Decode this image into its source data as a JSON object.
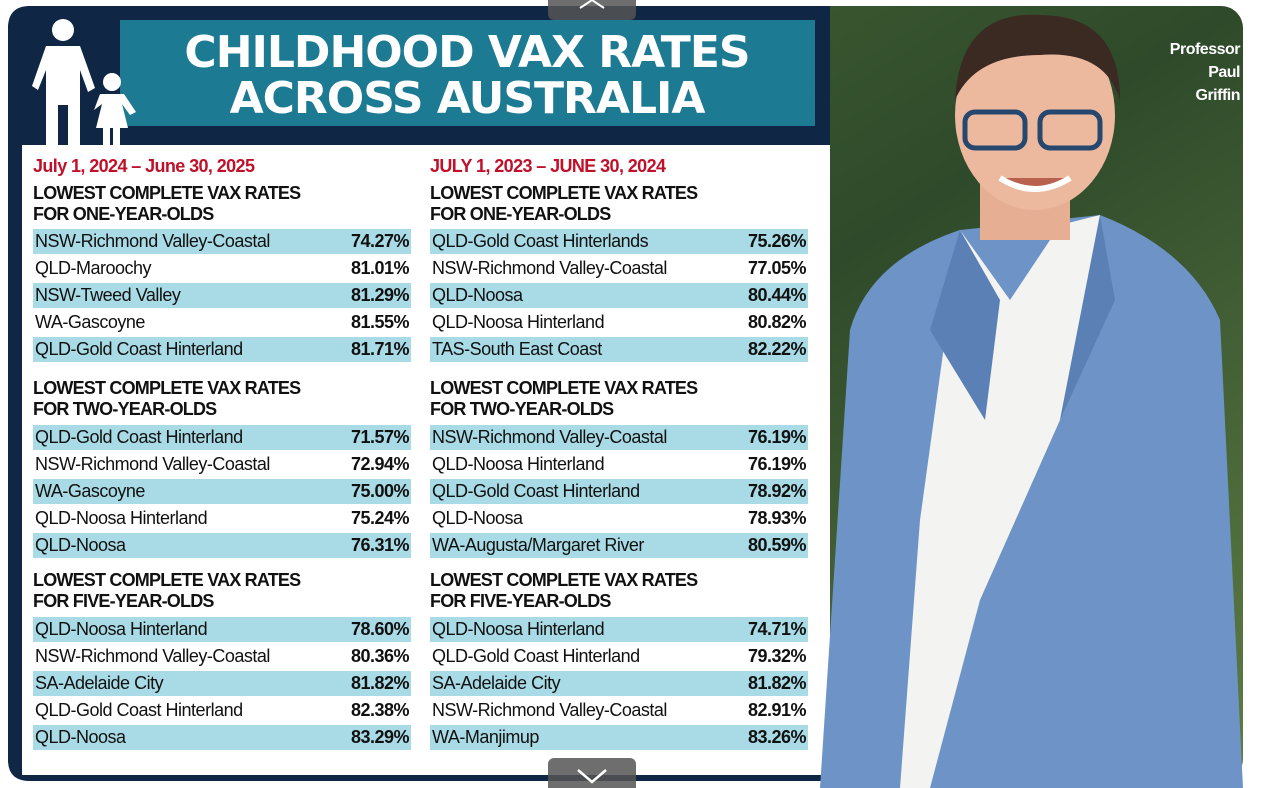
{
  "header": {
    "title_lines": [
      "CHILDHOOD VAX RATES",
      "ACROSS AUSTRALIA"
    ]
  },
  "photo_caption": [
    "Professor",
    "Paul",
    "Griffin"
  ],
  "columns": [
    {
      "period": "July 1, 2024 – June 30, 2025",
      "sections": [
        {
          "heading": [
            "LOWEST COMPLETE VAX RATES",
            "FOR ONE-YEAR-OLDS"
          ],
          "rows": [
            [
              "NSW-Richmond Valley-Coastal",
              "74.27%"
            ],
            [
              "QLD-Maroochy",
              "81.01%"
            ],
            [
              "NSW-Tweed Valley",
              "81.29%"
            ],
            [
              "WA-Gascoyne",
              "81.55%"
            ],
            [
              "QLD-Gold Coast Hinterland",
              "81.71%"
            ]
          ]
        },
        {
          "heading": [
            "LOWEST COMPLETE VAX RATES",
            "FOR TWO-YEAR-OLDS"
          ],
          "rows": [
            [
              "QLD-Gold Coast Hinterland",
              "71.57%"
            ],
            [
              "NSW-Richmond Valley-Coastal",
              "72.94%"
            ],
            [
              "WA-Gascoyne",
              "75.00%"
            ],
            [
              "QLD-Noosa Hinterland",
              "75.24%"
            ],
            [
              "QLD-Noosa",
              "76.31%"
            ]
          ]
        },
        {
          "heading": [
            "LOWEST COMPLETE VAX RATES",
            "FOR FIVE-YEAR-OLDS"
          ],
          "rows": [
            [
              "QLD-Noosa Hinterland",
              "78.60%"
            ],
            [
              "NSW-Richmond Valley-Coastal",
              "80.36%"
            ],
            [
              "SA-Adelaide City",
              "81.82%"
            ],
            [
              "QLD-Gold Coast Hinterland",
              "82.38%"
            ],
            [
              "QLD-Noosa",
              "83.29%"
            ]
          ]
        }
      ]
    },
    {
      "period": "JULY 1, 2023 – JUNE 30, 2024",
      "sections": [
        {
          "heading": [
            "LOWEST COMPLETE VAX RATES",
            "FOR ONE-YEAR-OLDS"
          ],
          "rows": [
            [
              "QLD-Gold Coast Hinterlands",
              "75.26%"
            ],
            [
              "NSW-Richmond Valley-Coastal",
              "77.05%"
            ],
            [
              "QLD-Noosa",
              "80.44%"
            ],
            [
              "QLD-Noosa Hinterland",
              "80.82%"
            ],
            [
              "TAS-South East Coast",
              "82.22%"
            ]
          ]
        },
        {
          "heading": [
            "LOWEST COMPLETE VAX RATES",
            "FOR TWO-YEAR-OLDS"
          ],
          "rows": [
            [
              "NSW-Richmond Valley-Coastal",
              "76.19%"
            ],
            [
              "QLD-Noosa Hinterland",
              "76.19%"
            ],
            [
              "QLD-Gold Coast Hinterland",
              "78.92%"
            ],
            [
              "QLD-Noosa",
              "78.93%"
            ],
            [
              "WA-Augusta/Margaret River",
              "80.59%"
            ]
          ]
        },
        {
          "heading": [
            "LOWEST COMPLETE VAX RATES",
            "FOR FIVE-YEAR-OLDS"
          ],
          "rows": [
            [
              "QLD-Noosa Hinterland",
              "74.71%"
            ],
            [
              "QLD-Gold Coast Hinterland",
              "79.32%"
            ],
            [
              "SA-Adelaide City",
              "81.82%"
            ],
            [
              "NSW-Richmond Valley-Coastal",
              "82.91%"
            ],
            [
              "WA-Manjimup",
              "83.26%"
            ]
          ]
        }
      ]
    }
  ]
}
